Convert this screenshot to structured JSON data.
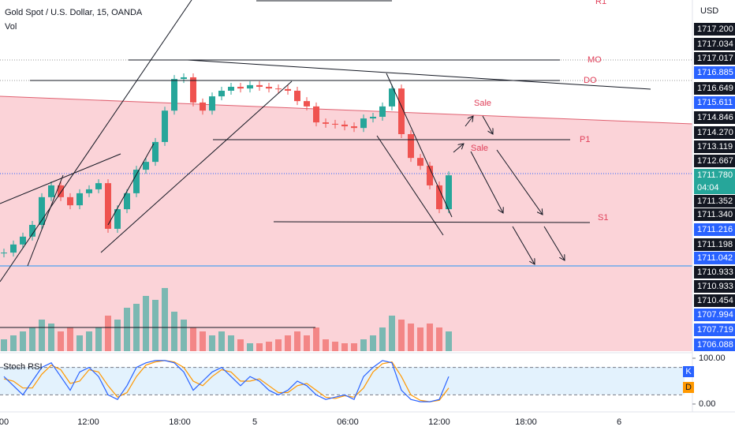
{
  "header": {
    "title": "Gold Spot / U.S. Dollar, 15, OANDA",
    "volume_label": "Vol",
    "currency": "USD",
    "stoch_label": "Stoch RSI",
    "k_label": "K",
    "d_label": "D",
    "countdown": "04:04"
  },
  "annotations": {
    "r1": "R1",
    "mo": "MO",
    "do": "DO",
    "sale_1": "Sale",
    "sale_2": "Sale",
    "p1": "P1",
    "s1": "S1"
  },
  "price_labels": [
    {
      "text": "1717.200",
      "color": "#131722"
    },
    {
      "text": "1717.034",
      "color": "#131722"
    },
    {
      "text": "1717.017",
      "color": "#131722"
    },
    {
      "text": "1716.885",
      "color": "#2962ff"
    },
    {
      "text": "1716.649",
      "color": "#131722"
    },
    {
      "text": "1715.611",
      "color": "#2962ff"
    },
    {
      "text": "1714.846",
      "color": "#131722"
    },
    {
      "text": "1714.270",
      "color": "#131722"
    },
    {
      "text": "1713.119",
      "color": "#131722"
    },
    {
      "text": "1712.667",
      "color": "#131722"
    },
    {
      "text": "1711.780",
      "color": "#26a69a"
    },
    {
      "text": "1711.352",
      "color": "#131722"
    },
    {
      "text": "1711.340",
      "color": "#131722"
    },
    {
      "text": "1711.216",
      "color": "#2962ff"
    },
    {
      "text": "1711.198",
      "color": "#131722"
    },
    {
      "text": "1711.042",
      "color": "#2962ff"
    },
    {
      "text": "1710.933",
      "color": "#131722"
    },
    {
      "text": "1710.933",
      "color": "#131722"
    },
    {
      "text": "1710.454",
      "color": "#131722"
    },
    {
      "text": "1707.994",
      "color": "#2962ff"
    },
    {
      "text": "1707.719",
      "color": "#2962ff"
    },
    {
      "text": "1706.088",
      "color": "#2962ff"
    }
  ],
  "time_labels": [
    "00",
    "12:00",
    "18:00",
    "5",
    "06:00",
    "12:00",
    "18:00",
    "6"
  ],
  "chart_data": {
    "type": "candlestick",
    "ylim": [
      1709.58,
      1719.16
    ],
    "up_color": "#26a69a",
    "down_color": "#ef5350",
    "close": [
      1710.14,
      1710.43,
      1710.71,
      1711.13,
      1712.12,
      1712.54,
      1712.12,
      1711.83,
      1712.26,
      1712.4,
      1712.62,
      1710.99,
      1711.69,
      1712.26,
      1713.1,
      1713.38,
      1714.09,
      1715.21,
      1716.34,
      1716.4,
      1715.5,
      1715.21,
      1715.72,
      1715.92,
      1716.06,
      1716.0,
      1716.12,
      1716.06,
      1716.0,
      1715.98,
      1715.92,
      1715.55,
      1715.36,
      1714.79,
      1714.74,
      1714.71,
      1714.65,
      1714.59,
      1714.93,
      1714.99,
      1715.36,
      1716.0,
      1714.37,
      1713.52,
      1713.24,
      1712.54,
      1711.69,
      1712.9
    ],
    "volume": {
      "ylim": [
        0,
        100
      ],
      "values": [
        15,
        20,
        25,
        30,
        40,
        35,
        25,
        30,
        20,
        25,
        30,
        45,
        40,
        55,
        60,
        70,
        65,
        80,
        50,
        40,
        30,
        25,
        20,
        25,
        20,
        15,
        10,
        10,
        12,
        15,
        20,
        25,
        20,
        30,
        15,
        12,
        10,
        10,
        15,
        20,
        30,
        45,
        40,
        35,
        30,
        35,
        30,
        25
      ]
    },
    "stoch": {
      "ylim": [
        0,
        100
      ],
      "yticks": [
        {
          "value": 100,
          "label": "100.00"
        },
        {
          "value": 0,
          "label": "0.00"
        }
      ],
      "bands": [
        20,
        80
      ],
      "k": {
        "color": "#2962ff",
        "values": [
          60,
          40,
          20,
          50,
          80,
          90,
          60,
          30,
          70,
          80,
          60,
          20,
          10,
          40,
          80,
          90,
          95,
          95,
          90,
          70,
          30,
          50,
          70,
          80,
          60,
          40,
          60,
          50,
          30,
          20,
          30,
          50,
          40,
          20,
          10,
          15,
          20,
          10,
          60,
          80,
          95,
          90,
          30,
          10,
          5,
          5,
          10,
          60
        ]
      },
      "d": {
        "color": "#ff9800",
        "values": [
          55,
          50,
          35,
          35,
          65,
          85,
          75,
          45,
          50,
          75,
          70,
          40,
          15,
          25,
          60,
          85,
          92,
          95,
          92,
          80,
          50,
          40,
          60,
          75,
          70,
          50,
          50,
          55,
          40,
          25,
          25,
          40,
          45,
          30,
          15,
          12,
          18,
          15,
          35,
          70,
          88,
          92,
          60,
          20,
          8,
          5,
          8,
          35
        ]
      }
    }
  }
}
